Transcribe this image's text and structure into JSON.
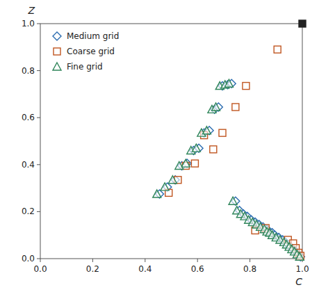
{
  "chart_data": {
    "type": "scatter",
    "xlabel": "C",
    "ylabel": "Z",
    "xlim": [
      0,
      1.0
    ],
    "ylim": [
      0,
      1.0
    ],
    "xticks": [
      {
        "value": 0,
        "label": "0.0"
      },
      0.2,
      0.4,
      0.6,
      0.8,
      {
        "value": 1.0,
        "label": "1.0"
      }
    ],
    "yticks": [
      {
        "value": 0,
        "label": "0.0"
      },
      0.2,
      0.4,
      0.6,
      0.8,
      {
        "value": 1.0,
        "label": "1.0"
      }
    ],
    "grid": false,
    "legend": "upper left",
    "series": [
      {
        "name": "Medium grid",
        "color": "#2b6cb0",
        "marker": "diamond",
        "x": [
          0.455,
          0.485,
          0.515,
          0.54,
          0.56,
          0.585,
          0.605,
          0.625,
          0.645,
          0.665,
          0.68,
          0.695,
          0.715,
          0.73,
          0.745,
          0.76,
          0.775,
          0.79,
          0.805,
          0.82,
          0.835,
          0.85,
          0.865,
          0.875,
          0.885,
          0.895,
          0.91,
          0.925,
          0.935,
          0.945,
          0.955,
          0.965,
          0.975,
          0.985,
          0.993
        ],
        "values": [
          0.275,
          0.305,
          0.335,
          0.395,
          0.405,
          0.46,
          0.47,
          0.535,
          0.545,
          0.635,
          0.645,
          0.735,
          0.74,
          0.745,
          0.245,
          0.205,
          0.19,
          0.18,
          0.165,
          0.155,
          0.145,
          0.135,
          0.125,
          0.115,
          0.11,
          0.1,
          0.09,
          0.08,
          0.07,
          0.06,
          0.05,
          0.04,
          0.03,
          0.018,
          0.008
        ]
      },
      {
        "name": "Coarse grid",
        "color": "#c05621",
        "marker": "square",
        "x": [
          0.49,
          0.525,
          0.555,
          0.59,
          0.625,
          0.66,
          0.695,
          0.745,
          0.785,
          0.82,
          0.86,
          0.905,
          0.945,
          0.965,
          0.975,
          0.985,
          0.993
        ],
        "values": [
          0.28,
          0.335,
          0.395,
          0.405,
          0.525,
          0.465,
          0.535,
          0.645,
          0.735,
          0.12,
          0.13,
          0.89,
          0.08,
          0.065,
          0.045,
          0.025,
          0.012
        ]
      },
      {
        "name": "Fine grid",
        "color": "#2f855a",
        "marker": "triangle",
        "x": [
          0.445,
          0.475,
          0.505,
          0.53,
          0.555,
          0.575,
          0.595,
          0.615,
          0.635,
          0.655,
          0.67,
          0.685,
          0.705,
          0.72,
          0.735,
          0.75,
          0.765,
          0.78,
          0.795,
          0.81,
          0.825,
          0.84,
          0.855,
          0.865,
          0.875,
          0.885,
          0.9,
          0.915,
          0.93,
          0.94,
          0.95,
          0.96,
          0.97,
          0.98,
          0.99
        ],
        "values": [
          0.275,
          0.305,
          0.335,
          0.395,
          0.405,
          0.46,
          0.47,
          0.535,
          0.545,
          0.635,
          0.645,
          0.735,
          0.74,
          0.745,
          0.245,
          0.205,
          0.19,
          0.18,
          0.165,
          0.155,
          0.145,
          0.135,
          0.125,
          0.115,
          0.11,
          0.1,
          0.09,
          0.08,
          0.07,
          0.06,
          0.05,
          0.04,
          0.03,
          0.018,
          0.008
        ]
      },
      {
        "color": "#222222",
        "marker": "filled-square",
        "x": [
          1.0
        ],
        "values": [
          1.0
        ]
      }
    ]
  }
}
